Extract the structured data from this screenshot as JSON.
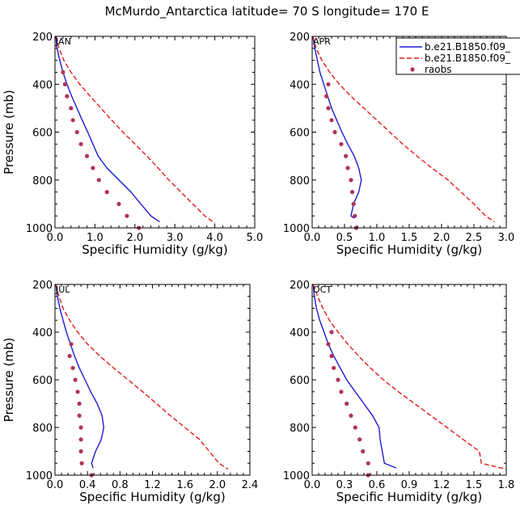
{
  "title": "McMurdo_Antarctica  latitude= 70 S longitude= 170 E",
  "colors": {
    "model1": "#1c1cd6",
    "model2": "#e41a1c",
    "raobs": "#b0325a"
  },
  "legend": {
    "position": "top-right",
    "entries": [
      {
        "label": "b.e21.B1850.f09_",
        "style": "solid-line",
        "color": "#1c1cd6"
      },
      {
        "label": "b.e21.B1850.f09_",
        "style": "dashed-line",
        "color": "#e41a1c"
      },
      {
        "label": "raobs",
        "style": "dots",
        "color": "#b0325a"
      }
    ]
  },
  "chart_data": [
    {
      "type": "line",
      "month": "JAN",
      "xlabel": "Specific Humidity (g/kg)",
      "ylabel": "Pressure (mb)",
      "xlim": [
        0,
        5
      ],
      "xticks": [
        "0.0",
        "1.0",
        "2.0",
        "3.0",
        "4.0",
        "5.0"
      ],
      "ylim": [
        200,
        1000
      ],
      "yticks": [
        "200",
        "400",
        "600",
        "800",
        "1000"
      ],
      "y_inverted": true,
      "grid": false,
      "series": [
        {
          "name": "b.e21.B1850.f09_",
          "style": "solid",
          "color": "#1c1cd6",
          "points": [
            [
              0.02,
              200
            ],
            [
              0.05,
              250
            ],
            [
              0.12,
              300
            ],
            [
              0.2,
              350
            ],
            [
              0.3,
              400
            ],
            [
              0.42,
              450
            ],
            [
              0.55,
              500
            ],
            [
              0.68,
              550
            ],
            [
              0.82,
              600
            ],
            [
              0.95,
              650
            ],
            [
              1.08,
              700
            ],
            [
              1.3,
              750
            ],
            [
              1.6,
              800
            ],
            [
              1.9,
              850
            ],
            [
              2.15,
              900
            ],
            [
              2.4,
              950
            ],
            [
              2.62,
              975
            ]
          ]
        },
        {
          "name": "b.e21.B1850.f09_",
          "style": "dashed",
          "color": "#e41a1c",
          "points": [
            [
              0.03,
              200
            ],
            [
              0.1,
              250
            ],
            [
              0.22,
              300
            ],
            [
              0.4,
              350
            ],
            [
              0.62,
              400
            ],
            [
              0.88,
              450
            ],
            [
              1.15,
              500
            ],
            [
              1.42,
              550
            ],
            [
              1.7,
              600
            ],
            [
              2.0,
              650
            ],
            [
              2.3,
              700
            ],
            [
              2.58,
              750
            ],
            [
              2.85,
              800
            ],
            [
              3.15,
              850
            ],
            [
              3.45,
              900
            ],
            [
              3.75,
              950
            ],
            [
              4.0,
              980
            ]
          ]
        },
        {
          "name": "raobs",
          "style": "dots",
          "color": "#b0325a",
          "points": [
            [
              0.2,
              350
            ],
            [
              0.25,
              400
            ],
            [
              0.3,
              450
            ],
            [
              0.4,
              500
            ],
            [
              0.45,
              550
            ],
            [
              0.55,
              600
            ],
            [
              0.65,
              650
            ],
            [
              0.8,
              700
            ],
            [
              0.95,
              750
            ],
            [
              1.1,
              800
            ],
            [
              1.3,
              850
            ],
            [
              1.6,
              900
            ],
            [
              1.8,
              950
            ],
            [
              2.1,
              1000
            ]
          ]
        }
      ]
    },
    {
      "type": "line",
      "month": "APR",
      "xlabel": "Specific Humidity (g/kg)",
      "ylabel": "",
      "xlim": [
        0,
        3
      ],
      "xticks": [
        "0.0",
        "0.5",
        "1.0",
        "1.5",
        "2.0",
        "2.5",
        "3.0"
      ],
      "ylim": [
        200,
        1000
      ],
      "yticks": [
        "200",
        "400",
        "600",
        "800",
        "1000"
      ],
      "y_inverted": true,
      "grid": false,
      "series": [
        {
          "name": "b.e21.B1850.f09_",
          "style": "solid",
          "color": "#1c1cd6",
          "points": [
            [
              0.01,
              200
            ],
            [
              0.04,
              250
            ],
            [
              0.08,
              300
            ],
            [
              0.12,
              350
            ],
            [
              0.18,
              400
            ],
            [
              0.24,
              450
            ],
            [
              0.3,
              500
            ],
            [
              0.38,
              550
            ],
            [
              0.46,
              600
            ],
            [
              0.55,
              650
            ],
            [
              0.65,
              700
            ],
            [
              0.72,
              750
            ],
            [
              0.76,
              800
            ],
            [
              0.72,
              850
            ],
            [
              0.64,
              900
            ],
            [
              0.6,
              950
            ],
            [
              0.65,
              960
            ]
          ]
        },
        {
          "name": "b.e21.B1850.f09_",
          "style": "dashed",
          "color": "#e41a1c",
          "points": [
            [
              0.01,
              200
            ],
            [
              0.06,
              250
            ],
            [
              0.15,
              300
            ],
            [
              0.27,
              350
            ],
            [
              0.42,
              400
            ],
            [
              0.6,
              450
            ],
            [
              0.8,
              500
            ],
            [
              1.0,
              550
            ],
            [
              1.2,
              600
            ],
            [
              1.4,
              650
            ],
            [
              1.62,
              700
            ],
            [
              1.85,
              750
            ],
            [
              2.1,
              800
            ],
            [
              2.3,
              850
            ],
            [
              2.5,
              900
            ],
            [
              2.68,
              950
            ],
            [
              2.82,
              975
            ]
          ]
        },
        {
          "name": "raobs",
          "style": "dots",
          "color": "#b0325a",
          "points": [
            [
              0.25,
              400
            ],
            [
              0.22,
              450
            ],
            [
              0.25,
              500
            ],
            [
              0.3,
              550
            ],
            [
              0.35,
              600
            ],
            [
              0.45,
              650
            ],
            [
              0.52,
              700
            ],
            [
              0.55,
              750
            ],
            [
              0.6,
              800
            ],
            [
              0.62,
              850
            ],
            [
              0.64,
              900
            ],
            [
              0.66,
              950
            ],
            [
              0.68,
              1000
            ]
          ]
        }
      ]
    },
    {
      "type": "line",
      "month": "JUL",
      "xlabel": "Specific Humidity (g/kg)",
      "ylabel": "Pressure (mb)",
      "xlim": [
        0,
        2.4
      ],
      "xticks": [
        "0.0",
        "0.4",
        "0.8",
        "1.2",
        "1.6",
        "2.0",
        "2.4"
      ],
      "ylim": [
        200,
        1000
      ],
      "yticks": [
        "200",
        "400",
        "600",
        "800",
        "1000"
      ],
      "y_inverted": true,
      "grid": false,
      "series": [
        {
          "name": "b.e21.B1850.f09_",
          "style": "solid",
          "color": "#1c1cd6",
          "points": [
            [
              0.01,
              200
            ],
            [
              0.03,
              250
            ],
            [
              0.06,
              300
            ],
            [
              0.1,
              350
            ],
            [
              0.14,
              400
            ],
            [
              0.19,
              450
            ],
            [
              0.24,
              500
            ],
            [
              0.3,
              550
            ],
            [
              0.37,
              600
            ],
            [
              0.44,
              650
            ],
            [
              0.52,
              700
            ],
            [
              0.58,
              750
            ],
            [
              0.6,
              800
            ],
            [
              0.57,
              850
            ],
            [
              0.5,
              900
            ],
            [
              0.45,
              950
            ],
            [
              0.47,
              970
            ]
          ]
        },
        {
          "name": "b.e21.B1850.f09_",
          "style": "dashed",
          "color": "#e41a1c",
          "points": [
            [
              0.01,
              200
            ],
            [
              0.05,
              250
            ],
            [
              0.1,
              300
            ],
            [
              0.18,
              350
            ],
            [
              0.28,
              400
            ],
            [
              0.4,
              450
            ],
            [
              0.55,
              500
            ],
            [
              0.72,
              550
            ],
            [
              0.9,
              600
            ],
            [
              1.08,
              650
            ],
            [
              1.25,
              700
            ],
            [
              1.42,
              750
            ],
            [
              1.6,
              800
            ],
            [
              1.78,
              850
            ],
            [
              1.9,
              900
            ],
            [
              2.02,
              950
            ],
            [
              2.13,
              975
            ]
          ]
        },
        {
          "name": "raobs",
          "style": "dots",
          "color": "#b0325a",
          "points": [
            [
              0.2,
              450
            ],
            [
              0.18,
              500
            ],
            [
              0.22,
              550
            ],
            [
              0.25,
              600
            ],
            [
              0.28,
              650
            ],
            [
              0.3,
              700
            ],
            [
              0.3,
              750
            ],
            [
              0.32,
              800
            ],
            [
              0.32,
              850
            ],
            [
              0.32,
              900
            ],
            [
              0.33,
              950
            ],
            [
              0.45,
              1000
            ]
          ]
        }
      ]
    },
    {
      "type": "line",
      "month": "OCT",
      "xlabel": "Specific Humidity (g/kg)",
      "ylabel": "",
      "xlim": [
        0,
        1.8
      ],
      "xticks": [
        "0.0",
        "0.3",
        "0.6",
        "0.9",
        "1.2",
        "1.5",
        "1.8"
      ],
      "ylim": [
        200,
        1000
      ],
      "yticks": [
        "200",
        "400",
        "600",
        "800",
        "1000"
      ],
      "y_inverted": true,
      "grid": false,
      "series": [
        {
          "name": "b.e21.B1850.f09_",
          "style": "solid",
          "color": "#1c1cd6",
          "points": [
            [
              0.01,
              200
            ],
            [
              0.02,
              250
            ],
            [
              0.04,
              300
            ],
            [
              0.07,
              350
            ],
            [
              0.11,
              400
            ],
            [
              0.15,
              450
            ],
            [
              0.2,
              500
            ],
            [
              0.26,
              550
            ],
            [
              0.32,
              600
            ],
            [
              0.4,
              650
            ],
            [
              0.48,
              700
            ],
            [
              0.56,
              750
            ],
            [
              0.62,
              800
            ],
            [
              0.63,
              850
            ],
            [
              0.65,
              900
            ],
            [
              0.67,
              950
            ],
            [
              0.78,
              970
            ]
          ]
        },
        {
          "name": "b.e21.B1850.f09_",
          "style": "dashed",
          "color": "#e41a1c",
          "points": [
            [
              0.01,
              200
            ],
            [
              0.05,
              250
            ],
            [
              0.1,
              300
            ],
            [
              0.16,
              350
            ],
            [
              0.24,
              400
            ],
            [
              0.33,
              450
            ],
            [
              0.43,
              500
            ],
            [
              0.54,
              550
            ],
            [
              0.66,
              600
            ],
            [
              0.8,
              650
            ],
            [
              0.95,
              700
            ],
            [
              1.1,
              750
            ],
            [
              1.25,
              800
            ],
            [
              1.4,
              850
            ],
            [
              1.55,
              900
            ],
            [
              1.57,
              950
            ],
            [
              1.8,
              975
            ]
          ]
        },
        {
          "name": "raobs",
          "style": "dots",
          "color": "#b0325a",
          "points": [
            [
              0.18,
              400
            ],
            [
              0.15,
              450
            ],
            [
              0.18,
              500
            ],
            [
              0.2,
              550
            ],
            [
              0.24,
              600
            ],
            [
              0.27,
              650
            ],
            [
              0.32,
              700
            ],
            [
              0.36,
              750
            ],
            [
              0.4,
              800
            ],
            [
              0.44,
              850
            ],
            [
              0.47,
              900
            ],
            [
              0.52,
              950
            ],
            [
              0.52,
              1000
            ]
          ]
        }
      ]
    }
  ]
}
